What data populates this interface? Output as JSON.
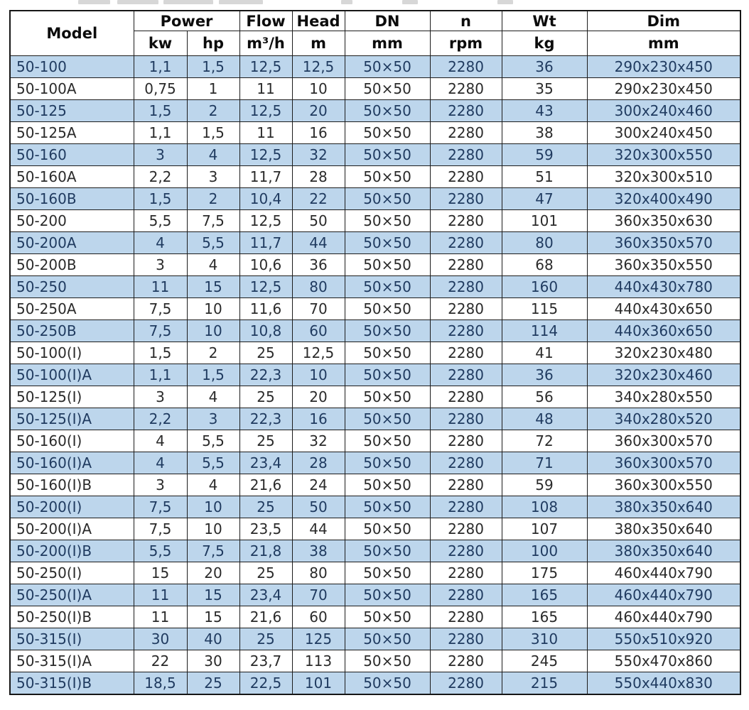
{
  "colors": {
    "row_shade_blue": "#bdd6ec",
    "row_plain_white": "#ffffff",
    "border": "#1c1c1c",
    "text_shaded_rows": "#1f3a5f",
    "text_plain_rows": "#2a2a2a",
    "header_text": "#0c0c0c"
  },
  "table": {
    "header": {
      "model_label": "Model",
      "power_label": "Power",
      "flow_label": "Flow",
      "head_label": "Head",
      "dn_label": "DN",
      "n_label": "n",
      "wt_label": "Wt",
      "dim_label": "Dim",
      "units": [
        "kw",
        "hp",
        "m³/h",
        "m",
        "mm",
        "rpm",
        "kg",
        "mm"
      ]
    },
    "columns": [
      "Model",
      "Power kw",
      "Power hp",
      "Flow m³/h",
      "Head m",
      "DN mm",
      "n rpm",
      "Wt kg",
      "Dim mm"
    ],
    "rows": [
      [
        "50-100",
        "1,1",
        "1,5",
        "12,5",
        "12,5",
        "50×50",
        "2280",
        "36",
        "290x230x450"
      ],
      [
        "50-100A",
        "0,75",
        "1",
        "11",
        "10",
        "50×50",
        "2280",
        "35",
        "290x230x450"
      ],
      [
        "50-125",
        "1,5",
        "2",
        "12,5",
        "20",
        "50×50",
        "2280",
        "43",
        "300x240x460"
      ],
      [
        "50-125A",
        "1,1",
        "1,5",
        "11",
        "16",
        "50×50",
        "2280",
        "38",
        "300x240x450"
      ],
      [
        "50-160",
        "3",
        "4",
        "12,5",
        "32",
        "50×50",
        "2280",
        "59",
        "320x300x550"
      ],
      [
        "50-160A",
        "2,2",
        "3",
        "11,7",
        "28",
        "50×50",
        "2280",
        "51",
        "320x300x510"
      ],
      [
        "50-160B",
        "1,5",
        "2",
        "10,4",
        "22",
        "50×50",
        "2280",
        "47",
        "320x400x490"
      ],
      [
        "50-200",
        "5,5",
        "7,5",
        "12,5",
        "50",
        "50×50",
        "2280",
        "101",
        "360x350x630"
      ],
      [
        "50-200A",
        "4",
        "5,5",
        "11,7",
        "44",
        "50×50",
        "2280",
        "80",
        "360x350x570"
      ],
      [
        "50-200B",
        "3",
        "4",
        "10,6",
        "36",
        "50×50",
        "2280",
        "68",
        "360x350x550"
      ],
      [
        "50-250",
        "11",
        "15",
        "12,5",
        "80",
        "50×50",
        "2280",
        "160",
        "440x430x780"
      ],
      [
        "50-250A",
        "7,5",
        "10",
        "11,6",
        "70",
        "50×50",
        "2280",
        "115",
        "440x430x650"
      ],
      [
        "50-250B",
        "7,5",
        "10",
        "10,8",
        "60",
        "50×50",
        "2280",
        "114",
        "440x360x650"
      ],
      [
        "50-100(I)",
        "1,5",
        "2",
        "25",
        "12,5",
        "50×50",
        "2280",
        "41",
        "320x230x480"
      ],
      [
        "50-100(I)A",
        "1,1",
        "1,5",
        "22,3",
        "10",
        "50×50",
        "2280",
        "36",
        "320x230x460"
      ],
      [
        "50-125(I)",
        "3",
        "4",
        "25",
        "20",
        "50×50",
        "2280",
        "56",
        "340x280x550"
      ],
      [
        "50-125(I)A",
        "2,2",
        "3",
        "22,3",
        "16",
        "50×50",
        "2280",
        "48",
        "340x280x520"
      ],
      [
        "50-160(I)",
        "4",
        "5,5",
        "25",
        "32",
        "50×50",
        "2280",
        "72",
        "360x300x570"
      ],
      [
        "50-160(I)A",
        "4",
        "5,5",
        "23,4",
        "28",
        "50×50",
        "2280",
        "71",
        "360x300x570"
      ],
      [
        "50-160(I)B",
        "3",
        "4",
        "21,6",
        "24",
        "50×50",
        "2280",
        "59",
        "360x300x550"
      ],
      [
        "50-200(I)",
        "7,5",
        "10",
        "25",
        "50",
        "50×50",
        "2280",
        "108",
        "380x350x640"
      ],
      [
        "50-200(I)A",
        "7,5",
        "10",
        "23,5",
        "44",
        "50×50",
        "2280",
        "107",
        "380x350x640"
      ],
      [
        "50-200(I)B",
        "5,5",
        "7,5",
        "21,8",
        "38",
        "50×50",
        "2280",
        "100",
        "380x350x640"
      ],
      [
        "50-250(I)",
        "15",
        "20",
        "25",
        "80",
        "50×50",
        "2280",
        "175",
        "460x440x790"
      ],
      [
        "50-250(I)A",
        "11",
        "15",
        "23,4",
        "70",
        "50×50",
        "2280",
        "165",
        "460x440x790"
      ],
      [
        "50-250(I)B",
        "11",
        "15",
        "21,6",
        "60",
        "50×50",
        "2280",
        "165",
        "460x440x790"
      ],
      [
        "50-315(I)",
        "30",
        "40",
        "25",
        "125",
        "50×50",
        "2280",
        "310",
        "550x510x920"
      ],
      [
        "50-315(I)A",
        "22",
        "30",
        "23,7",
        "113",
        "50×50",
        "2280",
        "245",
        "550x470x860"
      ],
      [
        "50-315(I)B",
        "18,5",
        "25",
        "22,5",
        "101",
        "50×50",
        "2280",
        "215",
        "550x440x830"
      ]
    ]
  }
}
